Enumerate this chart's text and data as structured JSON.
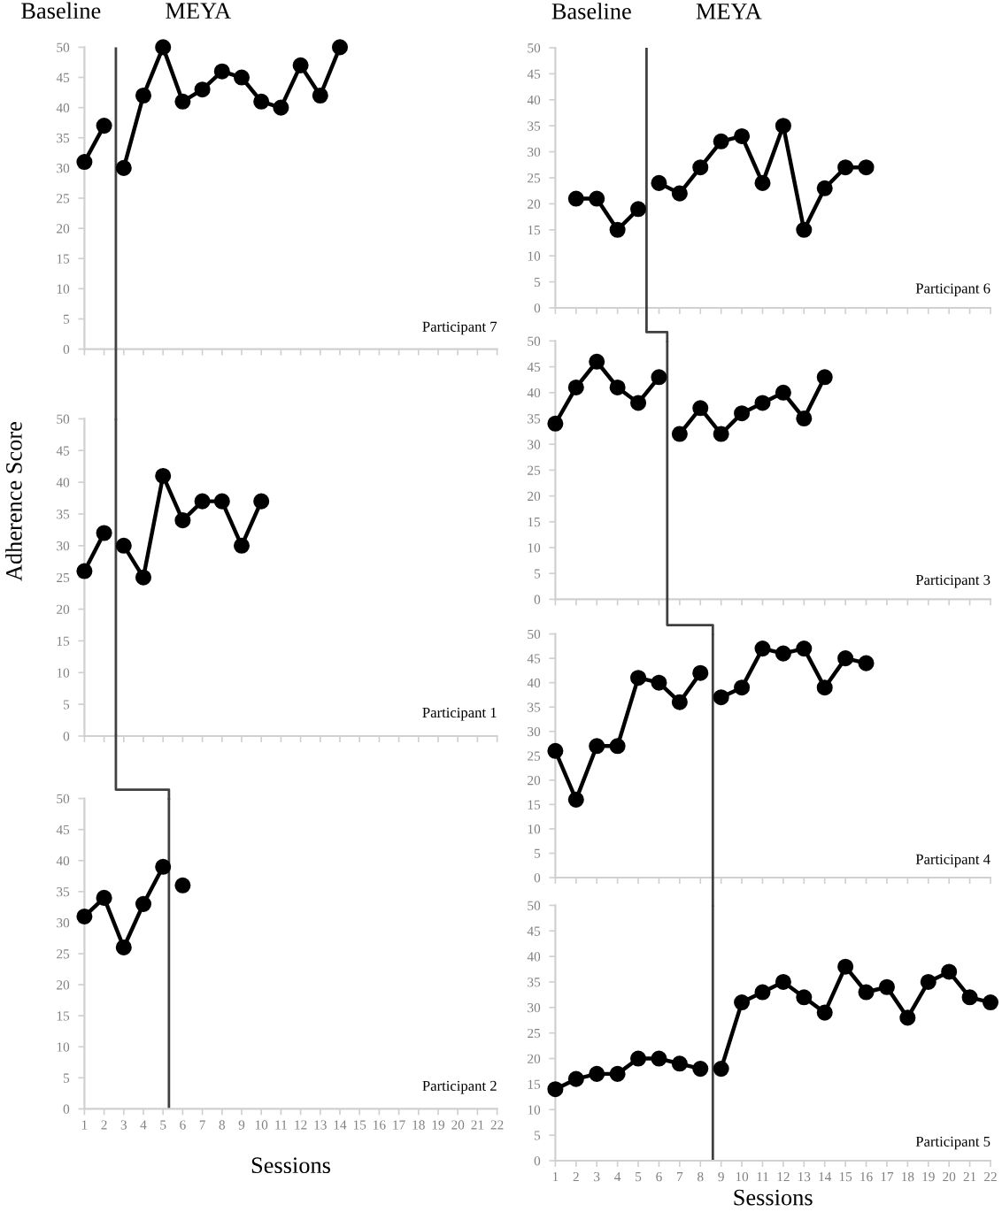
{
  "chart_data": [
    {
      "type": "line",
      "title": "Participant 7",
      "annotations": [
        "Baseline",
        "MEYA"
      ],
      "series": [
        {
          "color": "#000000",
          "x": [
            1,
            2
          ],
          "values": [
            31,
            37
          ]
        },
        {
          "color": "#000000",
          "x": [
            3,
            4,
            5,
            6,
            7,
            8,
            9,
            10,
            11,
            12,
            13,
            14
          ],
          "values": [
            30,
            42,
            50,
            41,
            43,
            46,
            45,
            41,
            40,
            47,
            42,
            50
          ]
        }
      ],
      "xlim": [
        1,
        22
      ],
      "xticks": [
        1,
        2,
        3,
        4,
        5,
        6,
        7,
        8,
        9,
        10,
        11,
        12,
        13,
        14,
        15,
        16,
        17,
        18,
        19,
        20,
        21,
        22
      ],
      "ylim": [
        0,
        50
      ],
      "yticks": [
        0,
        5,
        10,
        15,
        20,
        25,
        30,
        35,
        40,
        45,
        50
      ],
      "tick_labels": "y",
      "marker": "circle",
      "line_style": "solid",
      "ref_lines": [
        {
          "axis": "x",
          "value": 2.6,
          "color": "#404040"
        }
      ]
    },
    {
      "type": "line",
      "title": "Participant 1",
      "ylabel": "Adherence Score",
      "series": [
        {
          "color": "#000000",
          "x": [
            1,
            2
          ],
          "values": [
            26,
            32
          ]
        },
        {
          "color": "#000000",
          "x": [
            3,
            4,
            5,
            6,
            7,
            8,
            9,
            10
          ],
          "values": [
            30,
            25,
            41,
            34,
            37,
            37,
            30,
            37
          ]
        }
      ],
      "xlim": [
        1,
        22
      ],
      "xticks": [
        1,
        2,
        3,
        4,
        5,
        6,
        7,
        8,
        9,
        10,
        11,
        12,
        13,
        14,
        15,
        16,
        17,
        18,
        19,
        20,
        21,
        22
      ],
      "ylim": [
        0,
        50
      ],
      "yticks": [
        0,
        5,
        10,
        15,
        20,
        25,
        30,
        35,
        40,
        45,
        50
      ],
      "tick_labels": "y",
      "marker": "circle",
      "line_style": "solid",
      "ref_lines": [
        {
          "axis": "x",
          "value": 2.6,
          "color": "#404040"
        }
      ]
    },
    {
      "type": "line",
      "title": "Participant 2",
      "xlabel": "Sessions",
      "series": [
        {
          "color": "#000000",
          "x": [
            1,
            2,
            3,
            4,
            5
          ],
          "values": [
            31,
            34,
            26,
            33,
            39
          ]
        },
        {
          "color": "#000000",
          "x": [
            6
          ],
          "values": [
            36
          ]
        }
      ],
      "xlim": [
        1,
        22
      ],
      "xticks": [
        1,
        2,
        3,
        4,
        5,
        6,
        7,
        8,
        9,
        10,
        11,
        12,
        13,
        14,
        15,
        16,
        17,
        18,
        19,
        20,
        21,
        22
      ],
      "ylim": [
        0,
        50
      ],
      "yticks": [
        0,
        5,
        10,
        15,
        20,
        25,
        30,
        35,
        40,
        45,
        50
      ],
      "marker": "circle",
      "line_style": "solid",
      "ref_lines": [
        {
          "axis": "x",
          "value": 5.3,
          "color": "#404040"
        }
      ]
    },
    {
      "type": "line",
      "title": "Participant 6",
      "annotations": [
        "Baseline",
        "MEYA"
      ],
      "series": [
        {
          "color": "#000000",
          "x": [
            2,
            3,
            4,
            5
          ],
          "values": [
            21,
            21,
            15,
            19
          ]
        },
        {
          "color": "#000000",
          "x": [
            6,
            7,
            8,
            9,
            10,
            11,
            12,
            13,
            14,
            15,
            16
          ],
          "values": [
            24,
            22,
            27,
            32,
            33,
            24,
            35,
            15,
            23,
            27,
            27
          ]
        }
      ],
      "xlim": [
        1,
        22
      ],
      "xticks": [
        1,
        2,
        3,
        4,
        5,
        6,
        7,
        8,
        9,
        10,
        11,
        12,
        13,
        14,
        15,
        16,
        17,
        18,
        19,
        20,
        21,
        22
      ],
      "ylim": [
        0,
        50
      ],
      "yticks": [
        0,
        5,
        10,
        15,
        20,
        25,
        30,
        35,
        40,
        45,
        50
      ],
      "tick_labels": "y",
      "marker": "circle",
      "line_style": "solid",
      "ref_lines": [
        {
          "axis": "x",
          "value": 5.4,
          "color": "#404040"
        }
      ]
    },
    {
      "type": "line",
      "title": "Participant 3",
      "series": [
        {
          "color": "#000000",
          "x": [
            1,
            2,
            3,
            4,
            5,
            6
          ],
          "values": [
            34,
            41,
            46,
            41,
            38,
            43
          ]
        },
        {
          "color": "#000000",
          "x": [
            7,
            8,
            9,
            10,
            11,
            12,
            13,
            14
          ],
          "values": [
            32,
            37,
            32,
            36,
            38,
            40,
            35,
            43
          ]
        }
      ],
      "xlim": [
        1,
        22
      ],
      "xticks": [
        1,
        2,
        3,
        4,
        5,
        6,
        7,
        8,
        9,
        10,
        11,
        12,
        13,
        14,
        15,
        16,
        17,
        18,
        19,
        20,
        21,
        22
      ],
      "ylim": [
        0,
        50
      ],
      "yticks": [
        0,
        5,
        10,
        15,
        20,
        25,
        30,
        35,
        40,
        45,
        50
      ],
      "tick_labels": "y",
      "marker": "circle",
      "line_style": "solid",
      "ref_lines": [
        {
          "axis": "x",
          "value": 6.4,
          "color": "#404040"
        }
      ]
    },
    {
      "type": "line",
      "title": "Participant 4",
      "series": [
        {
          "color": "#000000",
          "x": [
            1,
            2,
            3,
            4,
            5,
            6,
            7,
            8
          ],
          "values": [
            26,
            16,
            27,
            27,
            41,
            40,
            36,
            42
          ]
        },
        {
          "color": "#000000",
          "x": [
            9,
            10,
            11,
            12,
            13,
            14,
            15,
            16
          ],
          "values": [
            37,
            39,
            47,
            46,
            47,
            39,
            45,
            44
          ]
        }
      ],
      "xlim": [
        1,
        22
      ],
      "xticks": [
        1,
        2,
        3,
        4,
        5,
        6,
        7,
        8,
        9,
        10,
        11,
        12,
        13,
        14,
        15,
        16,
        17,
        18,
        19,
        20,
        21,
        22
      ],
      "ylim": [
        0,
        50
      ],
      "yticks": [
        0,
        5,
        10,
        15,
        20,
        25,
        30,
        35,
        40,
        45,
        50
      ],
      "tick_labels": "y",
      "marker": "circle",
      "line_style": "solid",
      "ref_lines": [
        {
          "axis": "x",
          "value": 8.6,
          "color": "#404040"
        }
      ]
    },
    {
      "type": "line",
      "title": "Participant 5",
      "xlabel": "Sessions",
      "series": [
        {
          "color": "#000000",
          "x": [
            1,
            2,
            3,
            4,
            5,
            6,
            7,
            8
          ],
          "values": [
            14,
            16,
            17,
            17,
            20,
            20,
            19,
            18
          ]
        },
        {
          "color": "#000000",
          "x": [
            9,
            10,
            11,
            12,
            13,
            14,
            15,
            16,
            17,
            18,
            19,
            20,
            21,
            22
          ],
          "values": [
            18,
            31,
            33,
            35,
            32,
            29,
            38,
            33,
            34,
            28,
            35,
            37,
            32,
            31
          ]
        }
      ],
      "xlim": [
        1,
        22
      ],
      "xticks": [
        1,
        2,
        3,
        4,
        5,
        6,
        7,
        8,
        9,
        10,
        11,
        12,
        13,
        14,
        15,
        16,
        17,
        18,
        19,
        20,
        21,
        22
      ],
      "ylim": [
        0,
        50
      ],
      "yticks": [
        0,
        5,
        10,
        15,
        20,
        25,
        30,
        35,
        40,
        45,
        50
      ],
      "marker": "circle",
      "line_style": "solid",
      "ref_lines": [
        {
          "axis": "x",
          "value": 8.6,
          "color": "#404040"
        }
      ]
    }
  ]
}
